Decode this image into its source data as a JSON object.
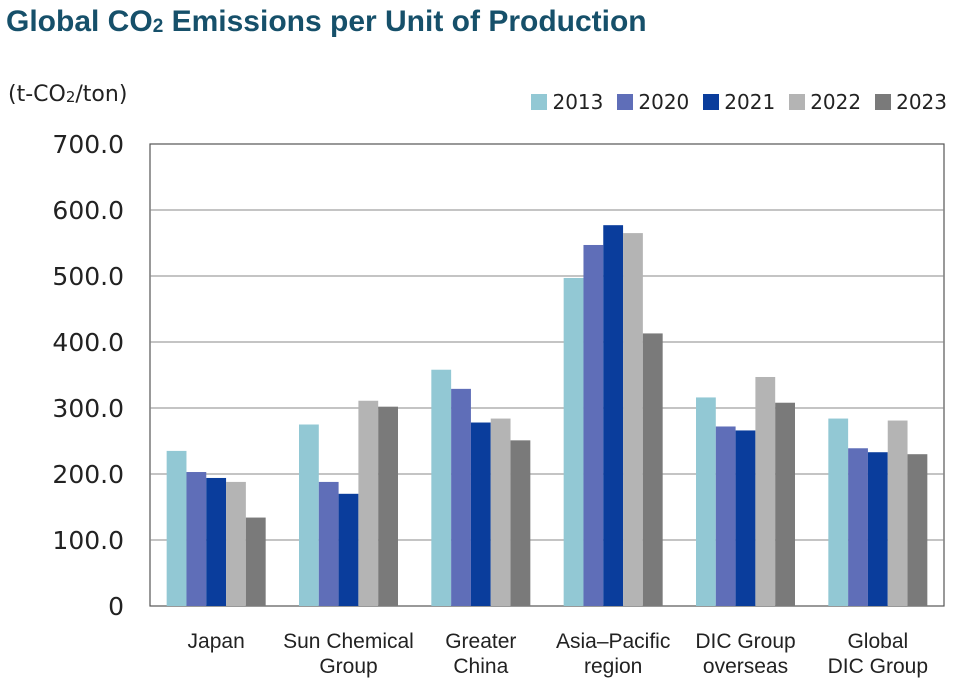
{
  "chart_data": {
    "type": "bar",
    "title_main": "Global CO",
    "title_sub": "2",
    "title_rest": " Emissions per Unit of Production",
    "ylabel_pre": "(t-CO",
    "ylabel_sub": "2",
    "ylabel_post": "/ton)",
    "ylim": [
      0,
      700
    ],
    "yticks": [
      "0",
      "100.0",
      "200.0",
      "300.0",
      "400.0",
      "500.0",
      "600.0",
      "700.0"
    ],
    "grid": true,
    "legend_position": "top-right",
    "categories": [
      [
        "Japan"
      ],
      [
        "Sun Chemical",
        "Group"
      ],
      [
        "Greater",
        "China"
      ],
      [
        "Asia–Pacific",
        "region"
      ],
      [
        "DIC Group",
        "overseas"
      ],
      [
        "Global",
        "DIC Group"
      ]
    ],
    "series": [
      {
        "name": "2013",
        "color": "#92c8d4",
        "values": [
          235,
          275,
          358,
          497,
          316,
          284
        ]
      },
      {
        "name": "2020",
        "color": "#5f6eb8",
        "values": [
          203,
          188,
          329,
          547,
          272,
          239
        ]
      },
      {
        "name": "2021",
        "color": "#0a3d9c",
        "values": [
          194,
          170,
          278,
          577,
          266,
          233
        ]
      },
      {
        "name": "2022",
        "color": "#b4b4b4",
        "values": [
          188,
          311,
          284,
          565,
          347,
          281
        ]
      },
      {
        "name": "2023",
        "color": "#7a7a7a",
        "values": [
          134,
          302,
          251,
          413,
          308,
          230
        ]
      }
    ]
  }
}
